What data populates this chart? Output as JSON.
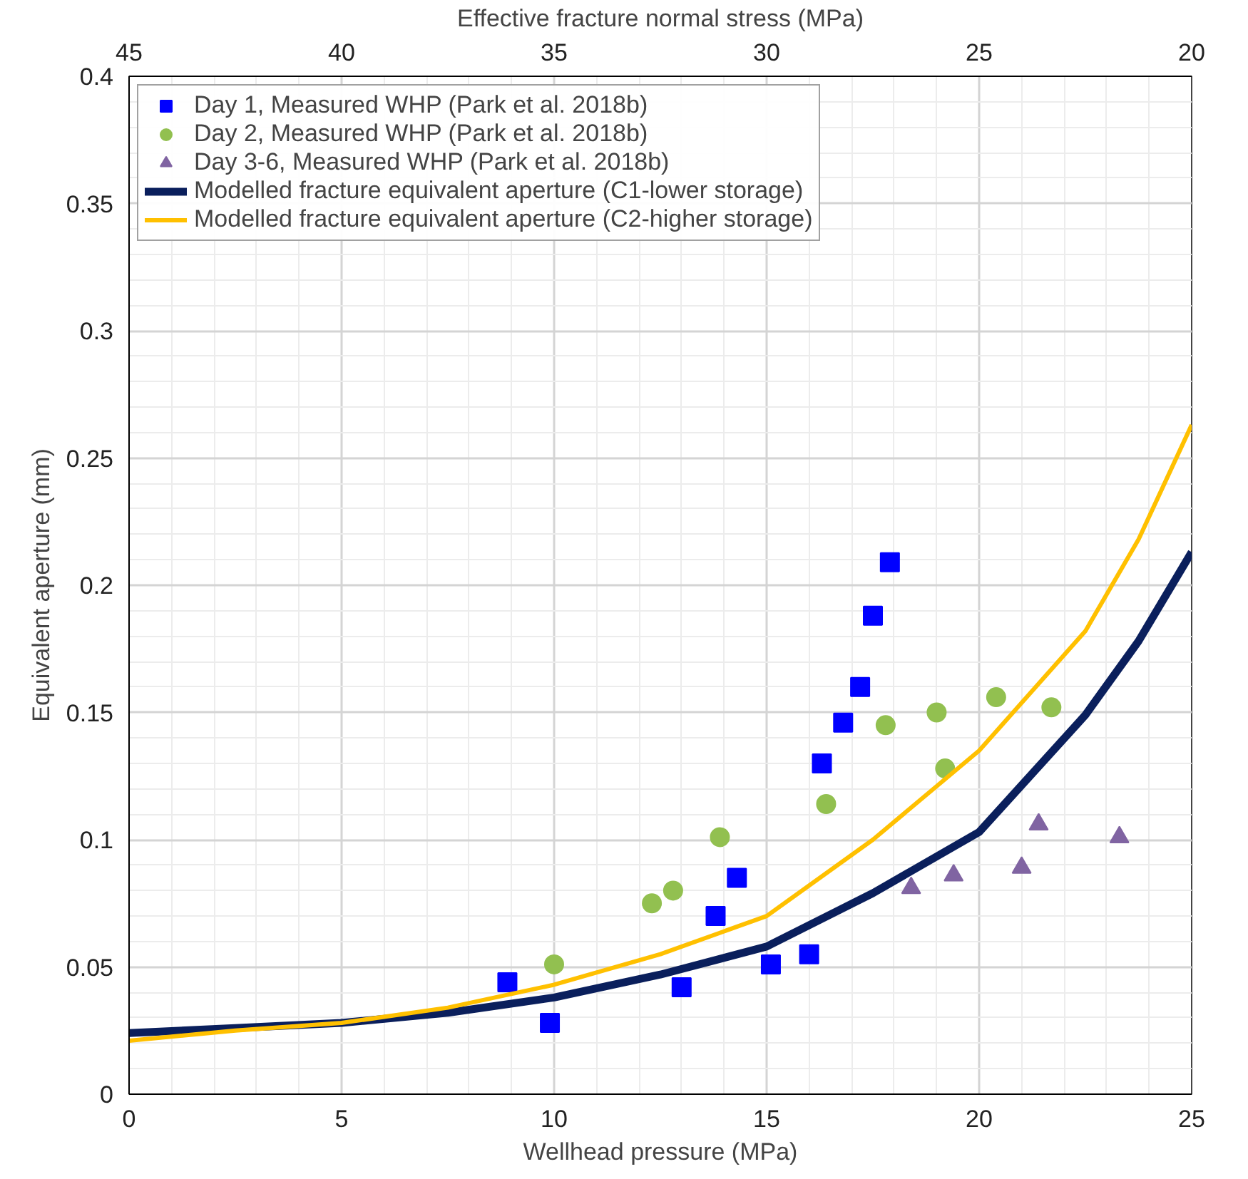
{
  "chart_data": {
    "type": "scatter",
    "xlabel": "Wellhead pressure (MPa)",
    "ylabel": "Equivalent aperture (mm)",
    "x2label": "Effective fracture normal stress (MPa)",
    "xlim": [
      0,
      25
    ],
    "xticks": [
      0,
      5,
      10,
      15,
      20,
      25
    ],
    "ylim": [
      0,
      0.4
    ],
    "yticks": [
      0,
      0.05,
      0.1,
      0.15,
      0.2,
      0.25,
      0.3,
      0.35,
      0.4
    ],
    "x2lim": [
      45,
      20
    ],
    "x2ticks": [
      45,
      40,
      35,
      30,
      25,
      20
    ],
    "grid": true,
    "legend": "top left",
    "series": [
      {
        "name": "Day 1, Measured WHP (Park et al. 2018b)",
        "marker": "square",
        "color": "#0000ff",
        "x": [
          8.9,
          9.9,
          13.0,
          13.8,
          14.3,
          15.1,
          16.0,
          16.3,
          16.8,
          17.2,
          17.5,
          17.9
        ],
        "values": [
          0.044,
          0.028,
          0.042,
          0.07,
          0.085,
          0.051,
          0.055,
          0.13,
          0.146,
          0.16,
          0.188,
          0.209
        ]
      },
      {
        "name": "Day 2, Measured WHP (Park et al. 2018b)",
        "marker": "circle",
        "color": "#92c050",
        "x": [
          10.0,
          12.3,
          12.8,
          13.9,
          16.4,
          17.8,
          19.0,
          19.2,
          20.4,
          21.7
        ],
        "values": [
          0.051,
          0.075,
          0.08,
          0.101,
          0.114,
          0.145,
          0.15,
          0.128,
          0.156,
          0.152
        ]
      },
      {
        "name": "Day 3-6, Measured WHP (Park et al. 2018b)",
        "marker": "triangle",
        "color": "#8064a2",
        "x": [
          18.4,
          19.4,
          21.0,
          21.4,
          23.3
        ],
        "values": [
          0.081,
          0.086,
          0.089,
          0.106,
          0.101
        ]
      },
      {
        "name": "Modelled fracture equivalent aperture (C1-lower storage)",
        "type": "line",
        "color": "#0a1f5c",
        "x": [
          0,
          2.5,
          5,
          7.5,
          10,
          12.5,
          15,
          17.5,
          20,
          22.5,
          23.75,
          25
        ],
        "values": [
          0.024,
          0.026,
          0.028,
          0.032,
          0.038,
          0.047,
          0.058,
          0.079,
          0.103,
          0.149,
          0.178,
          0.213
        ]
      },
      {
        "name": "Modelled fracture equivalent aperture (C2-higher storage)",
        "type": "line",
        "color": "#ffc000",
        "x": [
          0,
          2.5,
          5,
          7.5,
          10,
          12.5,
          15,
          17.5,
          20,
          22.5,
          23.75,
          25
        ],
        "values": [
          0.021,
          0.025,
          0.028,
          0.034,
          0.043,
          0.055,
          0.07,
          0.1,
          0.135,
          0.182,
          0.218,
          0.263
        ]
      }
    ]
  }
}
